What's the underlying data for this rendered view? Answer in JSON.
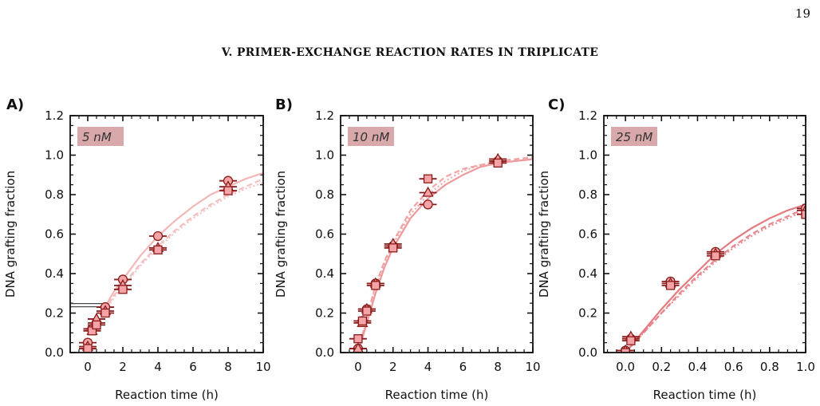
{
  "page": {
    "page_number": "19",
    "section_title": "V.   PRIMER-EXCHANGE REACTION RATES IN TRIPLICATE"
  },
  "colors": {
    "panel_A": "#F2B8B8",
    "panel_B": "#EE9A9C",
    "panel_C": "#E57A80",
    "marker_fill": "#F4A4A6",
    "marker_edge": "#8B1A1A",
    "label_box": "#D8A8AA"
  },
  "chart_data": [
    {
      "type": "scatter",
      "panel": "A)",
      "concentration_label": "5 nM",
      "xlabel": "Reaction time (h)",
      "ylabel": "DNA grafting fraction",
      "xlim": [
        -1,
        10
      ],
      "ylim": [
        0,
        1.2
      ],
      "xticks": [
        0,
        2,
        4,
        6,
        8,
        10
      ],
      "yticks": [
        0.0,
        0.2,
        0.4,
        0.6,
        0.8,
        1.0,
        1.2
      ],
      "series": [
        {
          "marker": "circle",
          "x": [
            0,
            0.25,
            0.5,
            1,
            2,
            4,
            8
          ],
          "y": [
            0.05,
            0.12,
            0.15,
            0.23,
            0.37,
            0.59,
            0.87
          ]
        },
        {
          "marker": "triangle",
          "x": [
            0,
            0.25,
            0.5,
            1,
            2,
            4,
            8
          ],
          "y": [
            0.03,
            0.11,
            0.17,
            0.21,
            0.34,
            0.53,
            0.84
          ]
        },
        {
          "marker": "square",
          "x": [
            0,
            0.25,
            0.5,
            1,
            2,
            4,
            8
          ],
          "y": [
            0.02,
            0.11,
            0.14,
            0.2,
            0.32,
            0.52,
            0.82
          ]
        }
      ],
      "fits": [
        {
          "style": "solid",
          "x": [
            0.9,
            1.5,
            2,
            3,
            4,
            5,
            6,
            7,
            8,
            9,
            10
          ],
          "y": [
            0.22,
            0.31,
            0.37,
            0.49,
            0.59,
            0.67,
            0.74,
            0.8,
            0.84,
            0.88,
            0.91
          ]
        },
        {
          "style": "dashed",
          "x": [
            0.9,
            1.5,
            2,
            3,
            4,
            5,
            6,
            7,
            8,
            9,
            10
          ],
          "y": [
            0.21,
            0.29,
            0.34,
            0.45,
            0.54,
            0.62,
            0.69,
            0.75,
            0.8,
            0.84,
            0.88
          ]
        },
        {
          "style": "dotted",
          "x": [
            0.9,
            1.5,
            2,
            3,
            4,
            5,
            6,
            7,
            8,
            9,
            10
          ],
          "y": [
            0.2,
            0.28,
            0.33,
            0.44,
            0.53,
            0.61,
            0.68,
            0.74,
            0.79,
            0.83,
            0.86
          ]
        }
      ],
      "baseline": {
        "x": [
          -1,
          0.8
        ],
        "y": 0.24
      }
    },
    {
      "type": "scatter",
      "panel": "B)",
      "concentration_label": "10 nM",
      "xlabel": "Reaction time (h)",
      "ylabel": "DNA grafting fraction",
      "xlim": [
        -1,
        10
      ],
      "ylim": [
        0,
        1.2
      ],
      "xticks": [
        0,
        2,
        4,
        6,
        8,
        10
      ],
      "yticks": [
        0.0,
        0.2,
        0.4,
        0.6,
        0.8,
        1.0,
        1.2
      ],
      "series": [
        {
          "marker": "circle",
          "x": [
            0,
            0.25,
            0.5,
            1,
            2,
            4,
            8
          ],
          "y": [
            0.02,
            0.16,
            0.22,
            0.35,
            0.54,
            0.75,
            0.97
          ]
        },
        {
          "marker": "triangle",
          "x": [
            0,
            0.25,
            0.5,
            1,
            2,
            4,
            8
          ],
          "y": [
            0.02,
            0.15,
            0.22,
            0.35,
            0.55,
            0.81,
            0.98
          ]
        },
        {
          "marker": "square",
          "x": [
            0,
            0.25,
            0.5,
            1,
            2,
            4,
            8
          ],
          "y": [
            0.07,
            0.16,
            0.21,
            0.34,
            0.53,
            0.88,
            0.96
          ]
        }
      ],
      "fits": [
        {
          "style": "solid",
          "x": [
            0,
            0.5,
            1,
            1.5,
            2,
            3,
            4,
            5,
            6,
            7,
            8,
            9,
            10
          ],
          "y": [
            0.0,
            0.15,
            0.3,
            0.43,
            0.53,
            0.68,
            0.78,
            0.85,
            0.9,
            0.94,
            0.96,
            0.97,
            0.98
          ]
        },
        {
          "style": "dashed",
          "x": [
            0,
            0.5,
            1,
            1.5,
            2,
            3,
            4,
            5,
            6,
            7,
            8,
            9,
            10
          ],
          "y": [
            0.0,
            0.18,
            0.34,
            0.46,
            0.56,
            0.72,
            0.82,
            0.89,
            0.93,
            0.95,
            0.97,
            0.98,
            0.99
          ]
        },
        {
          "style": "dotted",
          "x": [
            0,
            0.5,
            1,
            1.5,
            2,
            3,
            4,
            5,
            6,
            7,
            8,
            9,
            10
          ],
          "y": [
            0.0,
            0.17,
            0.33,
            0.45,
            0.55,
            0.7,
            0.8,
            0.87,
            0.92,
            0.95,
            0.96,
            0.97,
            0.98
          ]
        }
      ]
    },
    {
      "type": "scatter",
      "panel": "C)",
      "concentration_label": "25 nM",
      "xlabel": "Reaction time (h)",
      "ylabel": "DNA grafting fraction",
      "xlim": [
        -0.12,
        1.0
      ],
      "ylim": [
        0,
        1.2
      ],
      "xticks": [
        0.0,
        0.2,
        0.4,
        0.6,
        0.8,
        1.0
      ],
      "xticklabels": [
        "0.0",
        "0.2",
        "0.4",
        "0.6",
        "0.8",
        "1.0"
      ],
      "yticks": [
        0.0,
        0.2,
        0.4,
        0.6,
        0.8,
        1.0,
        1.2
      ],
      "series": [
        {
          "marker": "circle",
          "x": [
            0.0,
            0.03,
            0.25,
            0.5,
            1.0
          ],
          "y": [
            0.01,
            0.07,
            0.36,
            0.51,
            0.73
          ]
        },
        {
          "marker": "triangle",
          "x": [
            0.0,
            0.03,
            0.25,
            0.5,
            1.0
          ],
          "y": [
            0.01,
            0.08,
            0.35,
            0.5,
            0.72
          ]
        },
        {
          "marker": "square",
          "x": [
            0.0,
            0.03,
            0.25,
            0.5,
            1.0
          ],
          "y": [
            0.0,
            0.06,
            0.34,
            0.49,
            0.7
          ]
        }
      ],
      "fits": [
        {
          "style": "solid",
          "x": [
            0.0,
            0.1,
            0.2,
            0.3,
            0.4,
            0.5,
            0.6,
            0.7,
            0.8,
            0.9,
            1.0
          ],
          "y": [
            0.0,
            0.11,
            0.22,
            0.32,
            0.41,
            0.5,
            0.57,
            0.63,
            0.68,
            0.72,
            0.75
          ]
        },
        {
          "style": "dashed",
          "x": [
            0.0,
            0.1,
            0.2,
            0.3,
            0.4,
            0.5,
            0.6,
            0.7,
            0.8,
            0.9,
            1.0
          ],
          "y": [
            0.0,
            0.1,
            0.2,
            0.3,
            0.39,
            0.47,
            0.54,
            0.6,
            0.65,
            0.69,
            0.73
          ]
        },
        {
          "style": "dotted",
          "x": [
            0.0,
            0.1,
            0.2,
            0.3,
            0.4,
            0.5,
            0.6,
            0.7,
            0.8,
            0.9,
            1.0
          ],
          "y": [
            0.0,
            0.1,
            0.2,
            0.29,
            0.38,
            0.46,
            0.53,
            0.59,
            0.64,
            0.68,
            0.72
          ]
        }
      ]
    }
  ]
}
